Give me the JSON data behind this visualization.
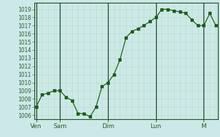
{
  "bg_color": "#cce8e8",
  "grid_color_major": "#aacaaa",
  "grid_color_minor": "#bbddbb",
  "line_color": "#1a5c1a",
  "marker_color": "#1a5c1a",
  "tick_label_color": "#2a5c2a",
  "spine_color": "#1a4a1a",
  "ylim": [
    1005.5,
    1019.8
  ],
  "yticks": [
    1006,
    1007,
    1008,
    1009,
    1010,
    1011,
    1012,
    1013,
    1014,
    1015,
    1016,
    1017,
    1018,
    1019
  ],
  "x_day_positions": [
    0,
    48,
    144,
    240,
    336
  ],
  "x_day_labels": [
    "Ven",
    "Sam",
    "Dim",
    "Lun",
    "M"
  ],
  "xlim": [
    -4,
    364
  ],
  "data_x": [
    0,
    12,
    24,
    36,
    48,
    60,
    72,
    84,
    96,
    108,
    120,
    132,
    144,
    156,
    168,
    180,
    192,
    204,
    216,
    228,
    240,
    252,
    264,
    276,
    288,
    300,
    312,
    324,
    336,
    348,
    360
  ],
  "data_y": [
    1007.0,
    1008.5,
    1008.7,
    1009.0,
    1009.0,
    1008.2,
    1007.8,
    1006.2,
    1006.2,
    1005.8,
    1007.0,
    1009.5,
    1010.0,
    1011.0,
    1012.8,
    1015.5,
    1016.3,
    1016.6,
    1017.0,
    1017.5,
    1018.0,
    1019.0,
    1019.0,
    1018.8,
    1018.7,
    1018.5,
    1017.7,
    1017.0,
    1017.0,
    1018.5,
    1017.0
  ]
}
